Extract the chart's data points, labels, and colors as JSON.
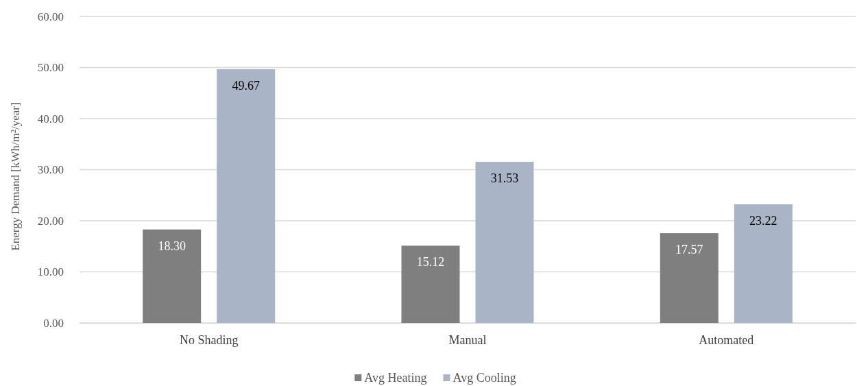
{
  "chart_data": {
    "type": "bar",
    "ylabel": "Energy Demand [kWh/m²/year]",
    "categories": [
      "No Shading",
      "Manual",
      "Automated"
    ],
    "series": [
      {
        "name": "Avg Heating",
        "color": "#7f7f7f",
        "values": [
          18.3,
          15.12,
          17.57
        ],
        "value_labels": [
          "18.30",
          "15.12",
          "17.57"
        ]
      },
      {
        "name": "Avg Cooling",
        "color": "#a9b4c6",
        "values": [
          49.67,
          31.53,
          23.22
        ],
        "value_labels": [
          "49.67",
          "31.53",
          "23.22"
        ]
      }
    ],
    "ylim": [
      0,
      60
    ],
    "yticks": [
      {
        "value": 0,
        "label": "0.00"
      },
      {
        "value": 10,
        "label": "10.00"
      },
      {
        "value": 20,
        "label": "20.00"
      },
      {
        "value": 30,
        "label": "30.00"
      },
      {
        "value": 40,
        "label": "40.00"
      },
      {
        "value": 50,
        "label": "50.00"
      },
      {
        "value": 60,
        "label": "60.00"
      }
    ],
    "grid": "y",
    "legend": "bottom"
  }
}
